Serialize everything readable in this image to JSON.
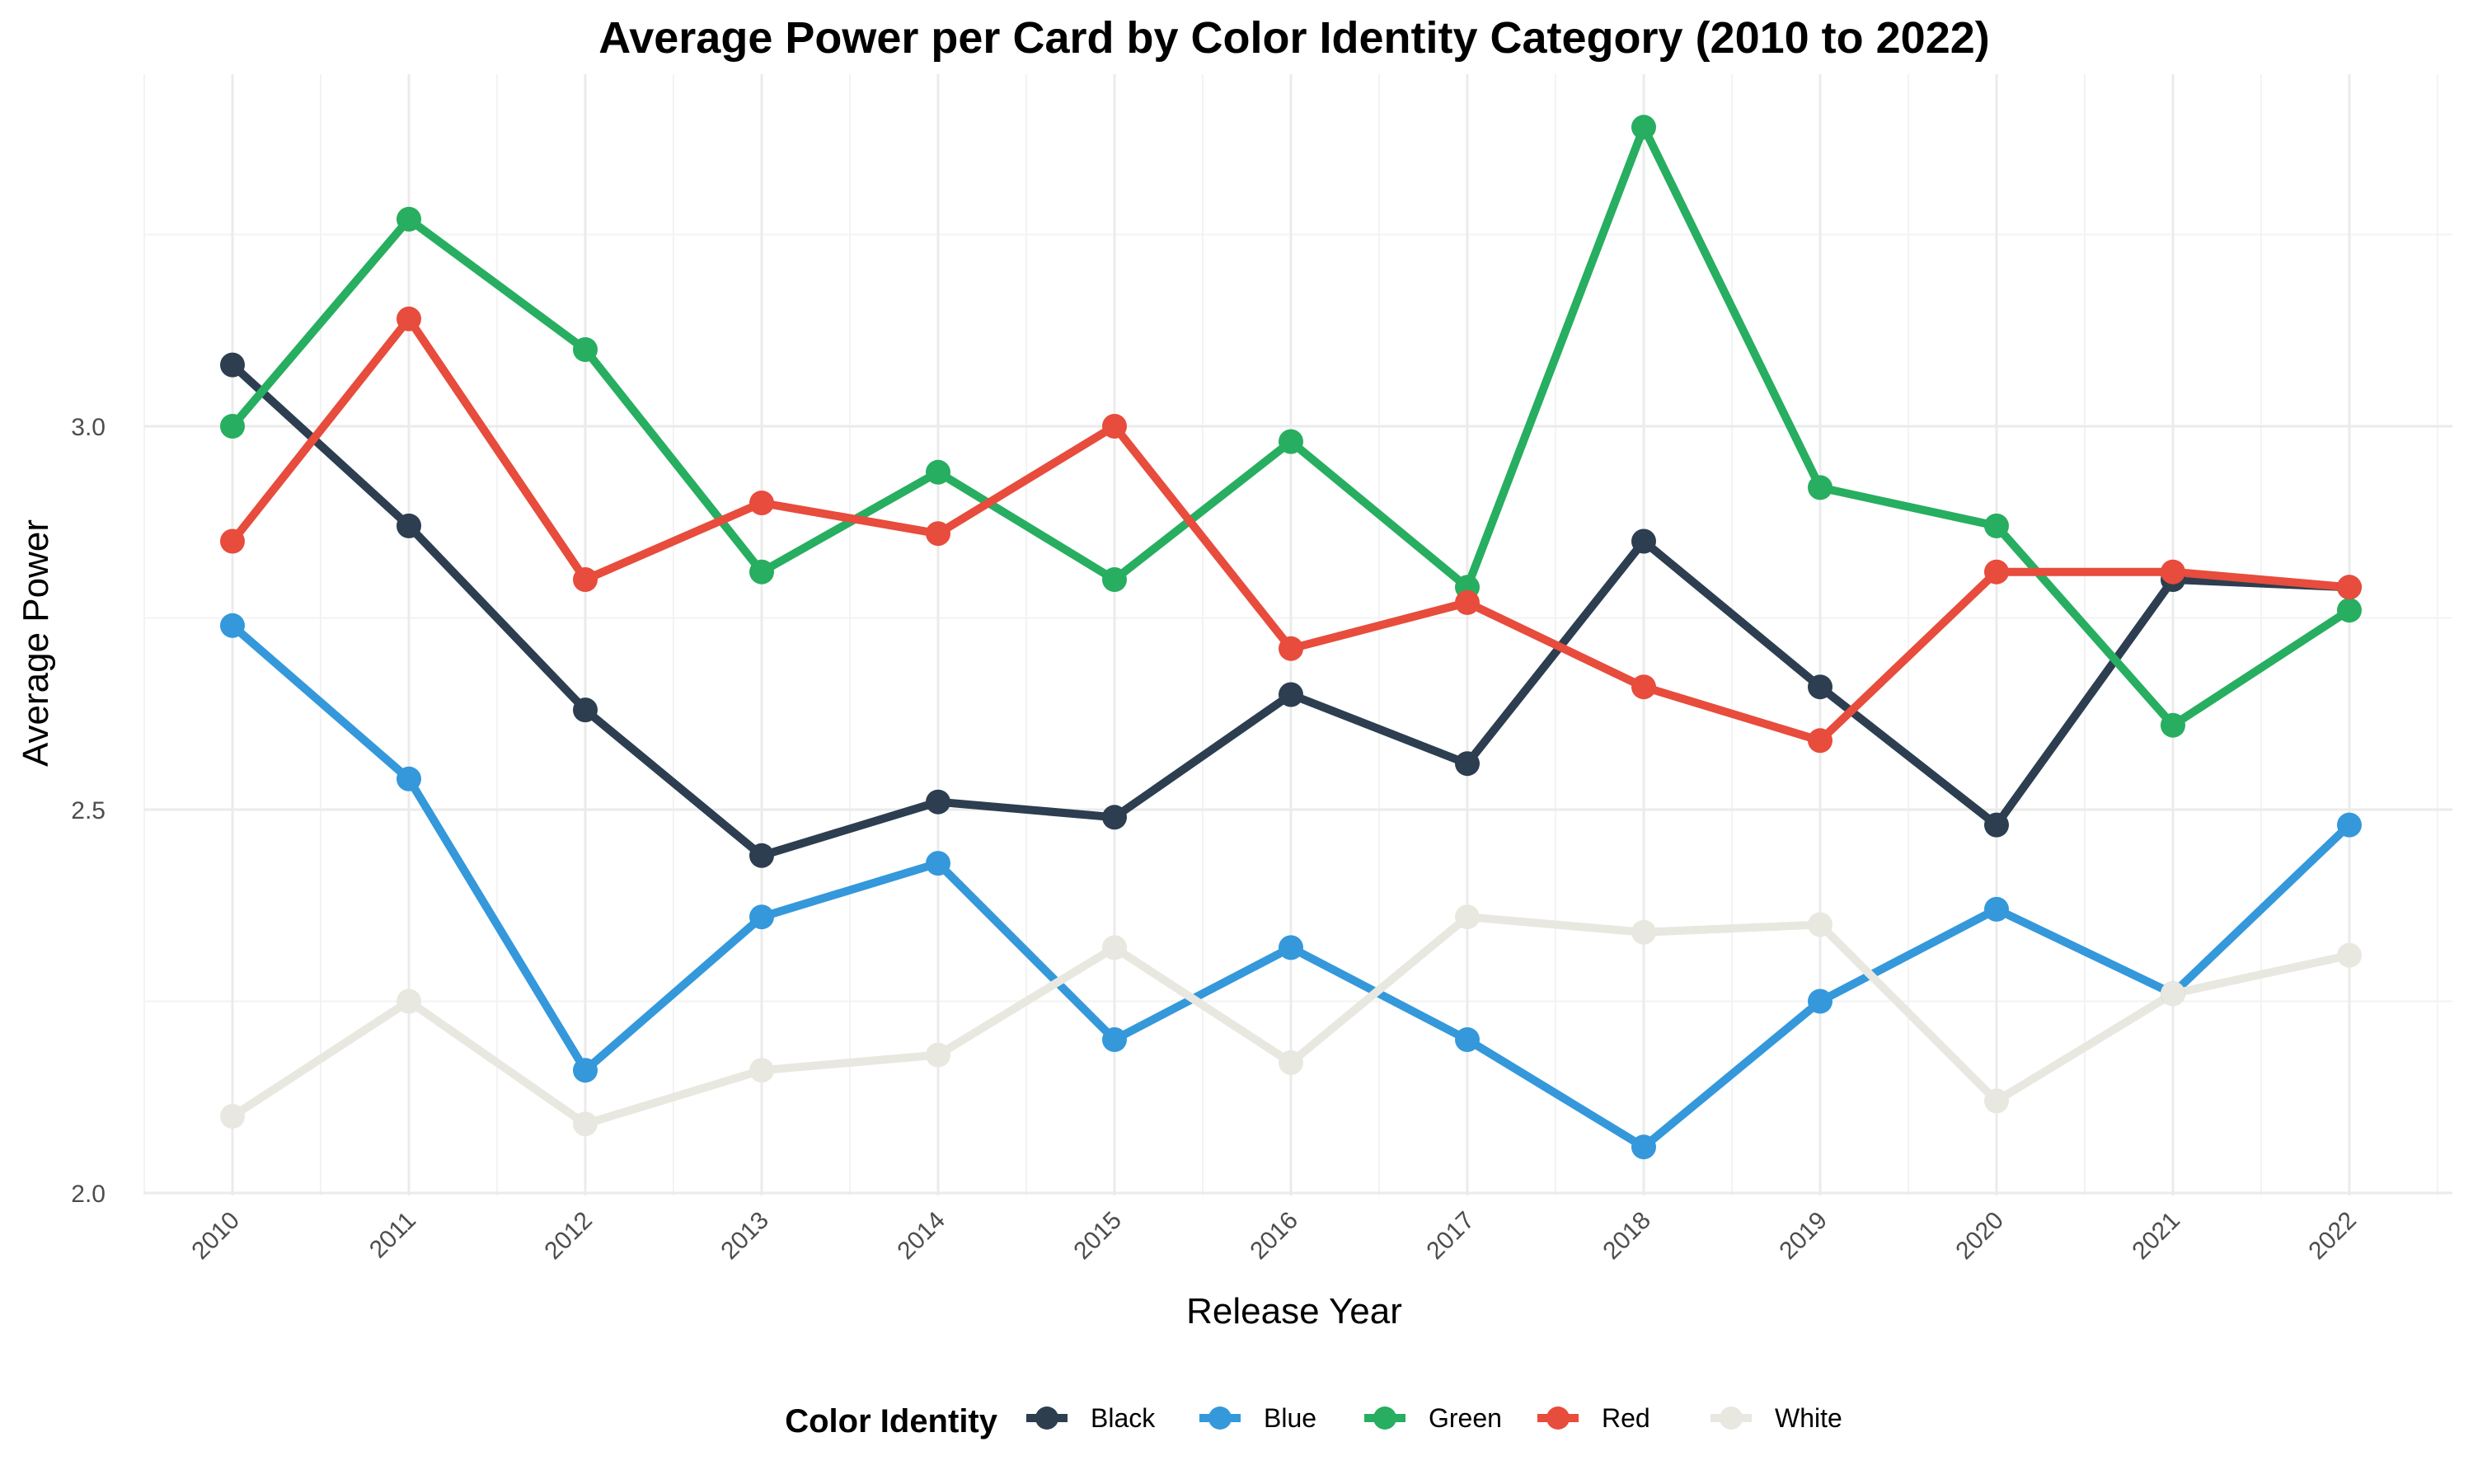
{
  "chart_data": {
    "type": "line",
    "title": "Average Power per Card by Color Identity Category (2010 to 2022)",
    "xlabel": "Release Year",
    "ylabel": "Average Power",
    "x": [
      "2010",
      "2011",
      "2012",
      "2013",
      "2014",
      "2015",
      "2016",
      "2017",
      "2018",
      "2019",
      "2020",
      "2021",
      "2022"
    ],
    "ylim": [
      2.0,
      3.4
    ],
    "yticks": [
      "2.0",
      "2.5",
      "3.0"
    ],
    "grid": true,
    "legend": {
      "title": "Color Identity",
      "position": "bottom"
    },
    "series": [
      {
        "name": "Black",
        "color": "#2c3e50",
        "values": [
          3.08,
          2.87,
          2.63,
          2.44,
          2.51,
          2.49,
          2.65,
          2.56,
          2.85,
          2.66,
          2.48,
          2.8,
          2.79
        ]
      },
      {
        "name": "Blue",
        "color": "#3498db",
        "values": [
          2.74,
          2.54,
          2.16,
          2.36,
          2.43,
          2.2,
          2.32,
          2.2,
          2.06,
          2.25,
          2.37,
          2.26,
          2.48
        ]
      },
      {
        "name": "Green",
        "color": "#27ae60",
        "values": [
          3.0,
          3.27,
          3.1,
          2.81,
          2.94,
          2.8,
          2.98,
          2.79,
          3.39,
          2.92,
          2.87,
          2.61,
          2.76
        ]
      },
      {
        "name": "Red",
        "color": "#e74c3c",
        "values": [
          2.85,
          3.14,
          2.8,
          2.9,
          2.86,
          3.0,
          2.71,
          2.77,
          2.66,
          2.59,
          2.81,
          2.81,
          2.79
        ]
      },
      {
        "name": "White",
        "color": "#e8e8e0",
        "values": [
          2.1,
          2.25,
          2.09,
          2.16,
          2.18,
          2.32,
          2.17,
          2.36,
          2.34,
          2.35,
          2.12,
          2.26,
          2.31
        ]
      }
    ]
  }
}
